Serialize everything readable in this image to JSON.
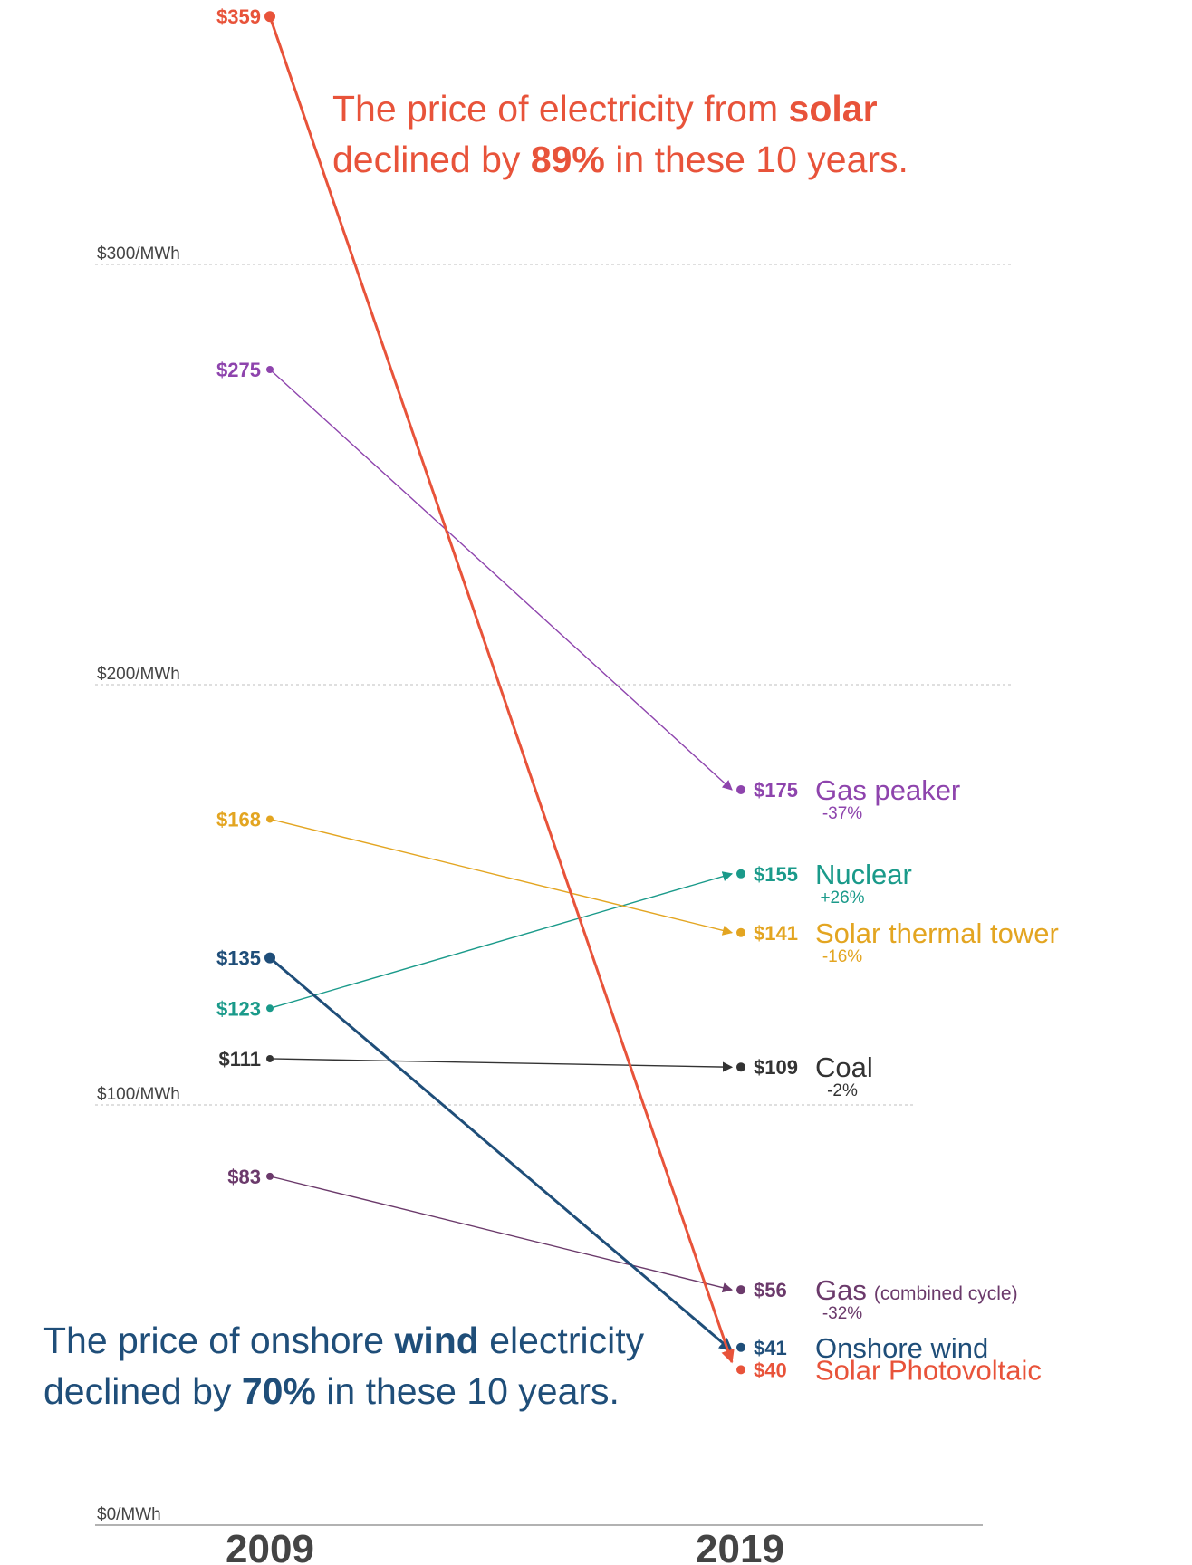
{
  "chart_data": {
    "type": "slope",
    "x": [
      "2009",
      "2019"
    ],
    "y_unit": "$/MWh",
    "ylim": [
      0,
      359
    ],
    "y_ticks": [
      {
        "value": 300,
        "label": "$300/MWh"
      },
      {
        "value": 200,
        "label": "$200/MWh"
      },
      {
        "value": 100,
        "label": "$100/MWh"
      },
      {
        "value": 0,
        "label": "$0/MWh"
      }
    ],
    "grid": true,
    "series": [
      {
        "name": "Gas peaker",
        "name_suffix": "",
        "start": 275,
        "end": 175,
        "start_label": "$275",
        "end_label": "$175",
        "change": "-37%",
        "color": "#8e44ad",
        "weight": "thin"
      },
      {
        "name": "Nuclear",
        "name_suffix": "",
        "start": 123,
        "end": 155,
        "start_label": "$123",
        "end_label": "$155",
        "change": "+26%",
        "color": "#1a9a8a",
        "weight": "thin"
      },
      {
        "name": "Solar thermal tower",
        "name_suffix": "",
        "start": 168,
        "end": 141,
        "start_label": "$168",
        "end_label": "$141",
        "change": "-16%",
        "color": "#e3a521",
        "weight": "thin"
      },
      {
        "name": "Coal",
        "name_suffix": "",
        "start": 111,
        "end": 109,
        "start_label": "$111",
        "end_label": "$109",
        "change": "-2%",
        "color": "#333333",
        "weight": "thin"
      },
      {
        "name": "Gas",
        "name_suffix": "(combined cycle)",
        "start": 83,
        "end": 56,
        "start_label": "$83",
        "end_label": "$56",
        "change": "-32%",
        "color": "#6b3a6b",
        "weight": "thin"
      },
      {
        "name": "Onshore wind",
        "name_suffix": "",
        "start": 135,
        "end": 41,
        "start_label": "$135",
        "end_label": "$41",
        "change": "",
        "color": "#1f4e79",
        "weight": "thick"
      },
      {
        "name": "Solar Photovoltaic",
        "name_suffix": "",
        "start": 359,
        "end": 40,
        "start_label": "$359",
        "end_label": "$40",
        "change": "",
        "color": "#e8533a",
        "weight": "thick"
      }
    ]
  },
  "annotations": {
    "solar": {
      "line1": [
        "The price of electricity from ",
        "solar"
      ],
      "line2": [
        "declined by ",
        "89%",
        " in these 10 years."
      ]
    },
    "wind": {
      "line1": [
        "The price of onshore ",
        "wind",
        " electricity"
      ],
      "line2": [
        "declined by ",
        "70%",
        " in these 10 years."
      ]
    }
  },
  "colors": {
    "solar_text": "#e8533a",
    "wind_text": "#1f4e79",
    "axis_text": "#444444",
    "grid": "#cccccc"
  }
}
